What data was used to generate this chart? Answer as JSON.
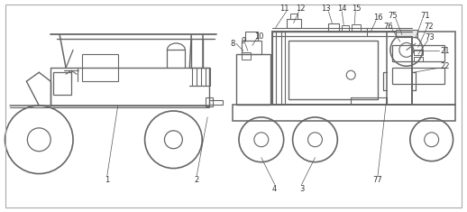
{
  "background_color": "#ffffff",
  "line_color": "#666666",
  "fig_width": 5.18,
  "fig_height": 2.35,
  "dpi": 100,
  "label_fontsize": 6.0,
  "label_color": "#333333",
  "annotation_line_color": "#555555"
}
